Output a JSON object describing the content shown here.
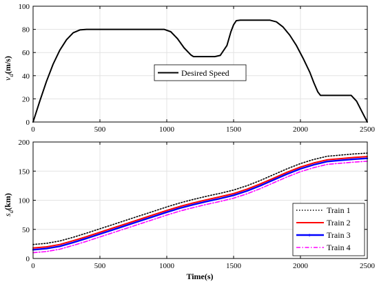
{
  "chart_data": [
    {
      "type": "line",
      "title": "",
      "xlabel": "",
      "ylabel_main": "v",
      "ylabel_sub": "d",
      "ylabel_unit": "(m/s)",
      "xlim": [
        0,
        2500
      ],
      "ylim": [
        0,
        100
      ],
      "xticks": [
        "0",
        "500",
        "1000",
        "1500",
        "2000",
        "2500"
      ],
      "yticks": [
        "0",
        "20",
        "40",
        "60",
        "80",
        "100"
      ],
      "grid": true,
      "legend_position": "center",
      "series": [
        {
          "name": "Desired Speed",
          "color": "#000000",
          "style": "solid",
          "x": [
            0,
            50,
            100,
            150,
            200,
            250,
            300,
            350,
            400,
            500,
            600,
            700,
            800,
            900,
            980,
            1030,
            1080,
            1130,
            1180,
            1200,
            1300,
            1360,
            1400,
            1450,
            1480,
            1500,
            1520,
            1550,
            1600,
            1700,
            1770,
            1820,
            1870,
            1920,
            1970,
            2020,
            2070,
            2100,
            2130,
            2150,
            2200,
            2300,
            2380,
            2420,
            2460,
            2500
          ],
          "y": [
            0,
            18,
            35,
            50,
            62,
            71,
            77,
            79.5,
            80,
            80,
            80,
            80,
            80,
            80,
            80,
            78,
            72,
            64,
            58,
            56.5,
            56.5,
            56.5,
            57.5,
            66,
            78,
            84,
            87.5,
            88,
            88,
            88,
            88,
            86.5,
            82,
            75,
            66,
            55,
            43,
            34,
            26,
            23,
            23,
            23,
            23,
            18,
            9,
            0
          ]
        }
      ]
    },
    {
      "type": "line",
      "title": "",
      "xlabel": "Time(s)",
      "ylabel_main": "s",
      "ylabel_sub": "d",
      "ylabel_unit": "(km)",
      "xlim": [
        0,
        2500
      ],
      "ylim": [
        0,
        200
      ],
      "xticks": [
        "0",
        "500",
        "1000",
        "1500",
        "2000",
        "2500"
      ],
      "yticks": [
        "0",
        "50",
        "100",
        "150",
        "200"
      ],
      "grid": true,
      "legend_position": "bottom-right",
      "x": [
        0,
        100,
        200,
        300,
        400,
        500,
        600,
        700,
        800,
        900,
        1000,
        1100,
        1200,
        1300,
        1400,
        1500,
        1600,
        1700,
        1800,
        1900,
        2000,
        2100,
        2200,
        2300,
        2400,
        2500
      ],
      "series": [
        {
          "name": "Train 1",
          "color": "#000000",
          "style": "dotted",
          "y": [
            24,
            26,
            30,
            36.5,
            43.5,
            51,
            58.5,
            66,
            73.5,
            81,
            88.5,
            95.5,
            101.5,
            107,
            112,
            117.5,
            125,
            134,
            144,
            154,
            163,
            170,
            175.5,
            177.5,
            179.5,
            181
          ]
        },
        {
          "name": "Train 2",
          "color": "#ff0000",
          "style": "solid",
          "y": [
            18,
            20,
            24,
            30.5,
            37.5,
            45,
            52.5,
            60,
            67.5,
            75,
            82.5,
            89.5,
            95.5,
            101,
            106,
            111.5,
            119,
            128,
            138,
            148,
            157,
            164,
            169.5,
            171.5,
            173.5,
            175
          ]
        },
        {
          "name": "Train 3",
          "color": "#0000ff",
          "style": "solid",
          "y": [
            15,
            17,
            21,
            27.5,
            34.5,
            42,
            49.5,
            57,
            64.5,
            72,
            79.5,
            86.5,
            92.5,
            98,
            103,
            108.5,
            116,
            125,
            135,
            145,
            154,
            161,
            166.5,
            168.5,
            170.5,
            172
          ]
        },
        {
          "name": "Train 4",
          "color": "#ff00ff",
          "style": "dashdot",
          "y": [
            10,
            12,
            16,
            22.5,
            29.5,
            37,
            44.5,
            52,
            59.5,
            67,
            74.5,
            81.5,
            87.5,
            93,
            98,
            103.5,
            111,
            120,
            130,
            140,
            149,
            156,
            161.5,
            163.5,
            165.5,
            167
          ]
        }
      ]
    }
  ]
}
